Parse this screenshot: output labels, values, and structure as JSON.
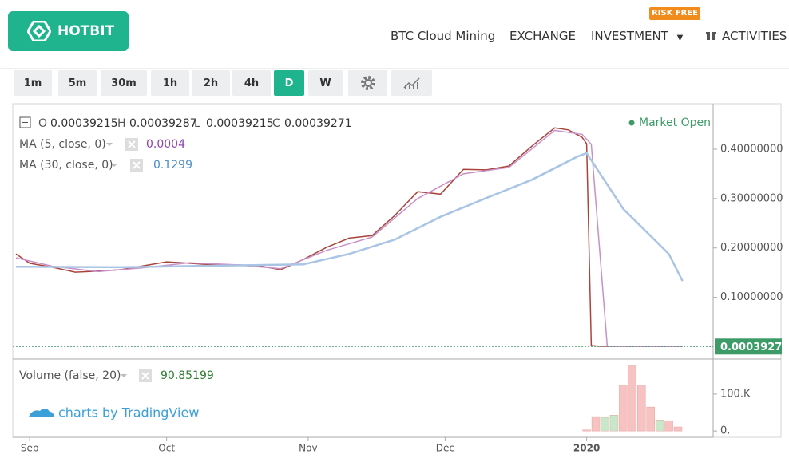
{
  "header": {
    "logo": "HOTBIT",
    "nav": [
      "BTC Cloud Mining",
      "EXCHANGE",
      "INVESTMENT",
      "ACTIVITIES"
    ],
    "badge": "RISK FREE"
  },
  "toolbar": {
    "intervals": [
      "1m",
      "5m",
      "30m",
      "1h",
      "2h",
      "4h",
      "D",
      "W"
    ],
    "active": 6
  },
  "chart_data": [
    {
      "type": "line",
      "ohlc": [
        {
          "label": "O",
          "value": "0.00039215"
        },
        {
          "label": "H",
          "value": "0.00039287"
        },
        {
          "label": "L",
          "value": "0.00039215"
        },
        {
          "label": "C",
          "value": "0.00039271"
        }
      ],
      "status": "Market Open",
      "last_price": 0.00039271,
      "xlim": [
        -3.7,
        149.7
      ],
      "xticks": [
        {
          "value": 0,
          "label": "Sep"
        },
        {
          "value": 30,
          "label": "Oct"
        },
        {
          "value": 61,
          "label": "Nov"
        },
        {
          "value": 91,
          "label": "Dec"
        },
        {
          "value": 122,
          "label": "2020"
        }
      ],
      "ylim": [
        -0.025,
        0.492
      ],
      "yticks": [
        {
          "value": 0.1,
          "label": "0.10000000"
        },
        {
          "value": 0.2,
          "label": "0.20000000"
        },
        {
          "value": 0.3,
          "label": "0.30000000"
        },
        {
          "value": 0.4,
          "label": "0.40000000"
        }
      ],
      "series": [
        {
          "color": "#a9443c",
          "x": [
            -3,
            0,
            5,
            10,
            15,
            20,
            25,
            30,
            35,
            40,
            45,
            50,
            55,
            60,
            65,
            70,
            75,
            80,
            85,
            90,
            95,
            100,
            105,
            110,
            115,
            118,
            121,
            122,
            123,
            125,
            140,
            143
          ],
          "values": [
            0.188,
            0.169,
            0.161,
            0.151,
            0.153,
            0.156,
            0.164,
            0.172,
            0.169,
            0.166,
            0.166,
            0.164,
            0.156,
            0.177,
            0.201,
            0.22,
            0.225,
            0.266,
            0.314,
            0.309,
            0.359,
            0.358,
            0.366,
            0.406,
            0.443,
            0.439,
            0.424,
            0.411,
            0.0024,
            0.0008,
            0.0004,
            0.00039271
          ]
        },
        {
          "name": "MA (5, close, 0)",
          "legend_value": "0.0004",
          "color": "#c890c8",
          "x": [
            -3,
            5,
            15,
            25,
            35,
            45,
            55,
            65,
            75,
            85,
            95,
            105,
            115,
            121,
            123,
            126.5,
            143
          ],
          "values": [
            0.18,
            0.163,
            0.152,
            0.16,
            0.17,
            0.166,
            0.158,
            0.195,
            0.222,
            0.3,
            0.35,
            0.363,
            0.438,
            0.43,
            0.41,
            0.0007,
            0.0004
          ]
        },
        {
          "name": "MA (30, close, 0)",
          "legend_value": "0.1299",
          "color": "#a9c4e4",
          "x": [
            -3,
            20,
            40,
            60,
            70,
            80,
            90,
            100,
            110,
            120,
            122,
            130,
            140,
            143
          ],
          "values": [
            0.162,
            0.161,
            0.164,
            0.167,
            0.188,
            0.217,
            0.263,
            0.301,
            0.338,
            0.385,
            0.392,
            0.279,
            0.188,
            0.133
          ]
        }
      ]
    },
    {
      "type": "bar",
      "watermark": "charts by TradingView",
      "xlim": [
        -3.7,
        149.7
      ],
      "ylim": [
        -17000,
        195000
      ],
      "yticks": [
        {
          "value": 0,
          "label": "0."
        },
        {
          "value": 100000,
          "label": "100.K"
        }
      ],
      "series": [
        {
          "name": "Volume (false, 20)",
          "legend_value": "90.85199",
          "x": [
            122,
            124,
            126,
            128,
            130,
            132,
            134,
            136,
            138,
            140,
            142
          ],
          "values": [
            3000,
            39000,
            37000,
            43000,
            124000,
            178000,
            124000,
            65000,
            30000,
            28000,
            11000
          ],
          "colors": [
            "#f6c2c2",
            "#f6c2c2",
            "#c9e7c9",
            "#c9e7c9",
            "#f6c2c2",
            "#f6c2c2",
            "#f6c2c2",
            "#f6c2c2",
            "#c9e7c9",
            "#f6c2c2",
            "#f6c2c2"
          ]
        }
      ]
    }
  ]
}
